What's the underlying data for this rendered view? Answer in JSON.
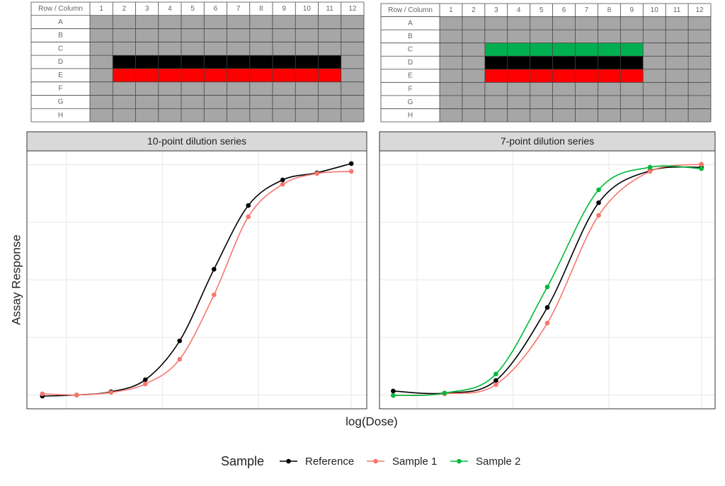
{
  "plates": [
    {
      "header": "Row / Column",
      "columns": [
        "1",
        "2",
        "3",
        "4",
        "5",
        "6",
        "7",
        "8",
        "9",
        "10",
        "11",
        "12"
      ],
      "rows": [
        "A",
        "B",
        "C",
        "D",
        "E",
        "F",
        "G",
        "H"
      ],
      "bands": [
        {
          "row": "D",
          "from": "2",
          "to": "11",
          "color": "#000000"
        },
        {
          "row": "E",
          "from": "2",
          "to": "11",
          "color": "#ff0000"
        }
      ]
    },
    {
      "header": "Row / Column",
      "columns": [
        "1",
        "2",
        "3",
        "4",
        "5",
        "6",
        "7",
        "8",
        "9",
        "10",
        "11",
        "12"
      ],
      "rows": [
        "A",
        "B",
        "C",
        "D",
        "E",
        "F",
        "G",
        "H"
      ],
      "bands": [
        {
          "row": "C",
          "from": "3",
          "to": "9",
          "color": "#00b050"
        },
        {
          "row": "D",
          "from": "3",
          "to": "9",
          "color": "#000000"
        },
        {
          "row": "E",
          "from": "3",
          "to": "9",
          "color": "#ff0000"
        }
      ]
    }
  ],
  "xlabel": "log(Dose)",
  "ylabel": "Assay Response",
  "legend_title": "Sample",
  "chart_data": [
    {
      "type": "line",
      "title": "10-point dilution series",
      "x": [
        0,
        1,
        2,
        3,
        4,
        5,
        6,
        7,
        8,
        9
      ],
      "series": [
        {
          "color": "#000000",
          "values": [
            -0.005,
            0,
            0.014,
            0.066,
            0.235,
            0.546,
            0.823,
            0.934,
            0.965,
            1.005
          ]
        },
        {
          "color": "#f8766d",
          "values": [
            0.005,
            0,
            0.011,
            0.048,
            0.155,
            0.435,
            0.774,
            0.915,
            0.962,
            0.971
          ]
        }
      ],
      "xlim": [
        -0.45,
        9.45
      ],
      "ylim": [
        -0.06,
        1.06
      ],
      "xticks": [
        0.7,
        3.5,
        6.3,
        9
      ],
      "yticks": [
        0,
        0.25,
        0.5,
        0.75,
        1
      ],
      "grid": true
    },
    {
      "type": "line",
      "title": "7-point dilution series",
      "x": [
        0,
        1.5,
        3,
        4.5,
        6,
        7.5,
        9
      ],
      "series": [
        {
          "name": "Reference",
          "color": "#000000",
          "values": [
            0.017,
            0.008,
            0.063,
            0.38,
            0.835,
            0.974,
            0.989
          ]
        },
        {
          "name": "Sample 1",
          "color": "#f8766d",
          "values": [
            -0.002,
            0.005,
            0.045,
            0.312,
            0.78,
            0.971,
            1.002
          ]
        },
        {
          "name": "Sample 2",
          "color": "#00ba38",
          "values": [
            -0.002,
            0.008,
            0.091,
            0.469,
            0.891,
            0.989,
            0.983
          ]
        }
      ],
      "xlim": [
        -0.4,
        9.4
      ],
      "ylim": [
        -0.06,
        1.06
      ],
      "xticks": [
        0.7,
        3.5,
        6.3,
        9
      ],
      "yticks": [
        0,
        0.25,
        0.5,
        0.75,
        1
      ],
      "grid": true
    }
  ]
}
